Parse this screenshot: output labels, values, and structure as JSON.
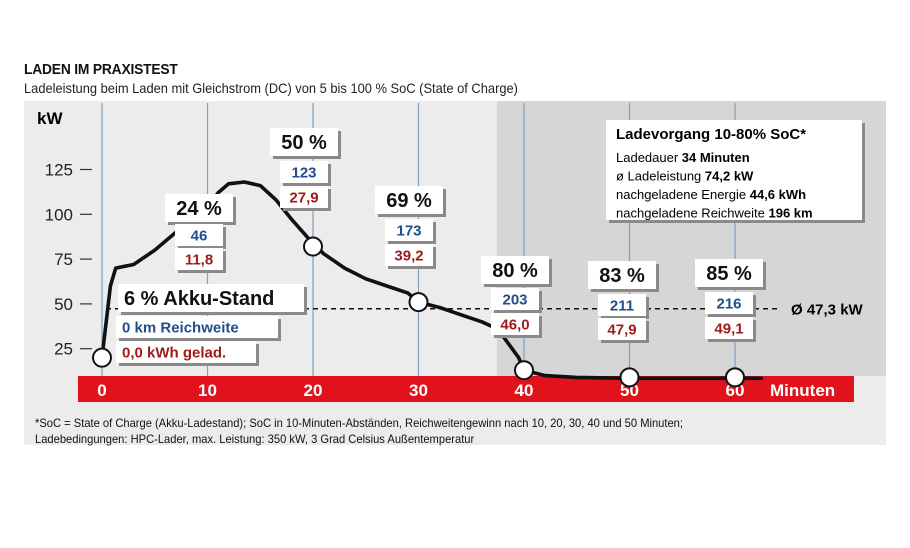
{
  "header": {
    "title": "LADEN IM PRAXISTEST",
    "subtitle": "Ladeleistung beim Laden mit Gleichstrom (DC) von 5 bis 100 % SoC (State of Charge)"
  },
  "footnote": {
    "line1": "*SoC = State of Charge (Akku-Ladestand); SoC in 10-Minuten-Abständen, Reichweitengewinn nach 10, 20, 30, 40 und 50 Minuten;",
    "line2": "Ladebedingungen: HPC-Lader, max. Leistung: 350 kW, 3 Grad Celsius Außentemperatur"
  },
  "colors": {
    "panel": "#ececec",
    "panel_dark": "#d6d6d6",
    "axis_bar": "#e1121b",
    "range_blue": "#1f4e8c",
    "energy_red": "#9e1b1b",
    "gridline": "#7fa0c0",
    "curve": "#111111"
  },
  "chart_data": {
    "type": "line",
    "title": "LADEN IM PRAXISTEST",
    "ylabel": "kW",
    "xlabel": "Minuten",
    "xlim": [
      -2,
      66
    ],
    "ylim": [
      12,
      137
    ],
    "xticks": [
      0,
      10,
      20,
      30,
      40,
      50,
      60
    ],
    "yticks": [
      25,
      50,
      75,
      100,
      125
    ],
    "grid": true,
    "series": [
      {
        "values": [
          [
            0,
            20
          ],
          [
            0.8,
            60
          ],
          [
            1.3,
            70
          ],
          [
            3,
            72
          ],
          [
            5,
            80
          ],
          [
            7,
            90
          ],
          [
            9,
            99
          ],
          [
            10,
            104
          ],
          [
            11,
            112
          ],
          [
            12,
            117
          ],
          [
            13.5,
            118
          ],
          [
            15,
            116
          ],
          [
            16.5,
            108
          ],
          [
            18,
            97
          ],
          [
            19.5,
            87
          ],
          [
            21,
            78
          ],
          [
            23,
            70
          ],
          [
            25,
            64
          ],
          [
            27,
            60
          ],
          [
            29,
            56
          ],
          [
            30,
            51
          ],
          [
            32,
            48
          ],
          [
            34,
            44
          ],
          [
            36,
            40
          ],
          [
            37.5,
            36
          ],
          [
            38.5,
            28
          ],
          [
            39.5,
            20
          ],
          [
            40,
            13
          ],
          [
            42,
            10
          ],
          [
            45,
            9
          ],
          [
            50,
            8.5
          ],
          [
            55,
            8.5
          ],
          [
            60,
            8.5
          ],
          [
            62.5,
            8.5
          ]
        ]
      }
    ],
    "reference_line": {
      "value": 47.3,
      "label": "Ø 47,3 kW"
    },
    "markers": [
      {
        "x": 0,
        "y": 20,
        "soc": "6 % Akku-Stand",
        "range": "0 km Reichweite",
        "energy": "0,0 kWh gelad."
      },
      {
        "x": 10,
        "y": 104,
        "soc": "24 %",
        "range": "46",
        "energy": "11,8"
      },
      {
        "x": 20,
        "y": 82,
        "soc": "50 %",
        "range": "123",
        "energy": "27,9"
      },
      {
        "x": 30,
        "y": 51,
        "soc": "69 %",
        "range": "173",
        "energy": "39,2"
      },
      {
        "x": 40,
        "y": 13,
        "soc": "80 %",
        "range": "203",
        "energy": "46,0"
      },
      {
        "x": 50,
        "y": 9,
        "soc": "83 %",
        "range": "211",
        "energy": "47,9"
      },
      {
        "x": 60,
        "y": 9,
        "soc": "85 %",
        "range": "216",
        "energy": "49,1"
      }
    ],
    "info_box": {
      "title": "Ladevorgang 10-80% SoC*",
      "rows": [
        {
          "label": "Ladedauer ",
          "value": "34 Minuten"
        },
        {
          "label": "ø Ladeleistung ",
          "value": "74,2 kW"
        },
        {
          "label": "nachgeladene Energie ",
          "value": "44,6 kWh"
        },
        {
          "label": "nachgeladene Reichweite ",
          "value": "196 km"
        }
      ]
    }
  }
}
